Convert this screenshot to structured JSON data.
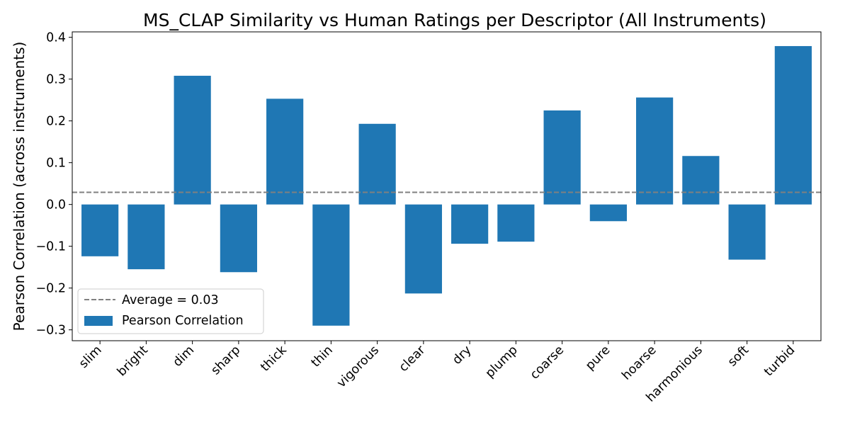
{
  "chart_data": {
    "type": "bar",
    "title": "MS_CLAP Similarity vs Human Ratings per Descriptor (All Instruments)",
    "xlabel": "",
    "ylabel": "Pearson Correlation (across instruments)",
    "categories": [
      "slim",
      "bright",
      "dim",
      "sharp",
      "thick",
      "thin",
      "vigorous",
      "clear",
      "dry",
      "plump",
      "coarse",
      "pure",
      "hoarse",
      "harmonious",
      "soft",
      "turbid"
    ],
    "series": [
      {
        "name": "Pearson Correlation",
        "values": [
          -0.124,
          -0.155,
          0.308,
          -0.162,
          0.253,
          -0.29,
          0.193,
          -0.213,
          -0.094,
          -0.089,
          0.225,
          -0.04,
          0.256,
          0.116,
          -0.132,
          0.379
        ],
        "color": "#1f77b4"
      }
    ],
    "reference_line": {
      "label": "Average = 0.03",
      "value": 0.029,
      "color": "#808080",
      "style": "dashed"
    },
    "yticks": [
      "−0.3",
      "−0.2",
      "−0.1",
      "0.0",
      "0.1",
      "0.2",
      "0.3",
      "0.4"
    ],
    "ytick_values": [
      -0.3,
      -0.2,
      -0.1,
      0.0,
      0.1,
      0.2,
      0.3,
      0.4
    ],
    "ylim": [
      -0.326,
      0.413
    ],
    "grid": false,
    "legend_position": "lower-left"
  }
}
